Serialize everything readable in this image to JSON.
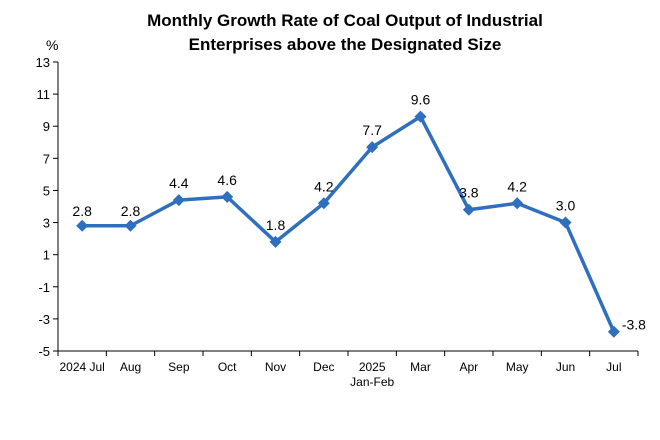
{
  "chart_data": {
    "type": "line",
    "title_lines": [
      "Monthly Growth Rate of Coal Output of Industrial",
      "Enterprises above the Designated Size"
    ],
    "ylabel": "%",
    "ylim": [
      -5,
      13
    ],
    "yticks": [
      "13",
      "11",
      "9",
      "7",
      "5",
      "3",
      "1",
      "-1",
      "-3",
      "-5"
    ],
    "categories": [
      {
        "line1": "2024 Jul",
        "line2": ""
      },
      {
        "line1": "Aug",
        "line2": ""
      },
      {
        "line1": "Sep",
        "line2": ""
      },
      {
        "line1": "Oct",
        "line2": ""
      },
      {
        "line1": "Nov",
        "line2": ""
      },
      {
        "line1": "Dec",
        "line2": ""
      },
      {
        "line1": "2025",
        "line2": "Jan-Feb"
      },
      {
        "line1": "Mar",
        "line2": ""
      },
      {
        "line1": "Apr",
        "line2": ""
      },
      {
        "line1": "May",
        "line2": ""
      },
      {
        "line1": "Jun",
        "line2": ""
      },
      {
        "line1": "Jul",
        "line2": ""
      }
    ],
    "values": [
      2.8,
      2.8,
      4.4,
      4.6,
      1.8,
      4.2,
      7.7,
      9.6,
      3.8,
      4.2,
      3.0,
      -3.8
    ],
    "labels": [
      "2.8",
      "2.8",
      "4.4",
      "4.6",
      "1.8",
      "4.2",
      "7.7",
      "9.6",
      "3.8",
      "4.2",
      "3.0",
      "-3.8"
    ],
    "series_color": "#2E6FBE",
    "marker": "diamond",
    "grid": false
  }
}
